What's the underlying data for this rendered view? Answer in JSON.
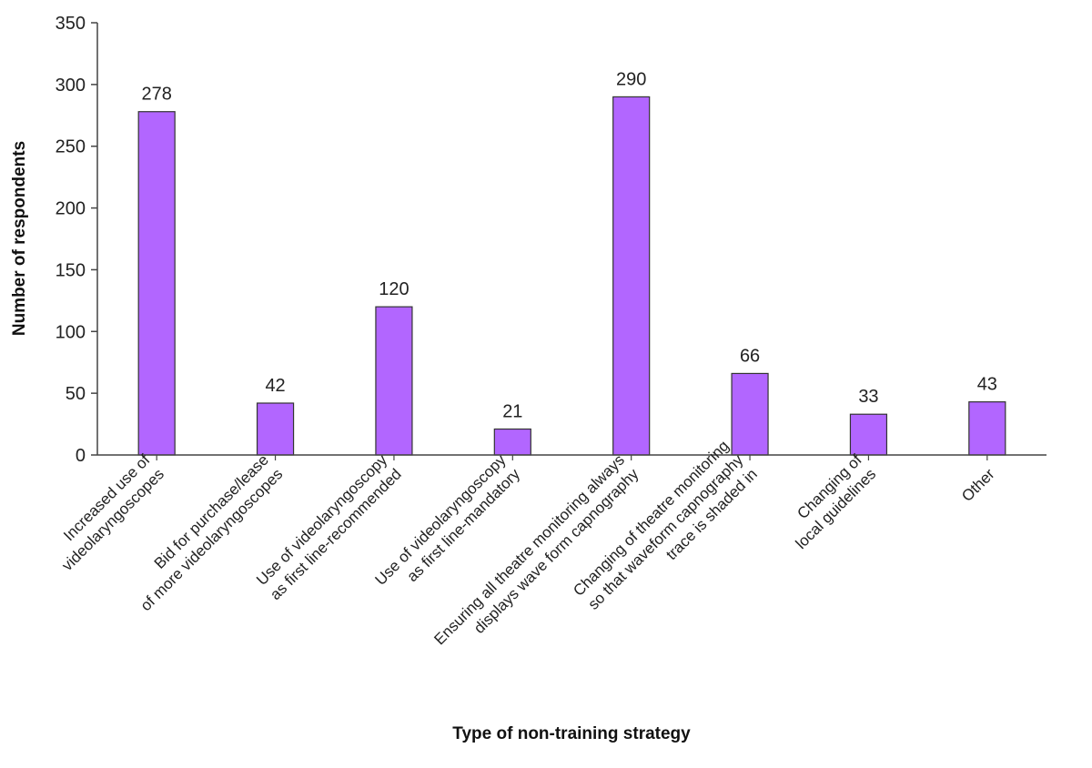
{
  "chart_data": {
    "type": "bar",
    "title": "",
    "xlabel": "Type of non-training strategy",
    "ylabel": "Number of respondents",
    "ylim": [
      0,
      350
    ],
    "yticks": [
      0,
      50,
      100,
      150,
      200,
      250,
      300,
      350
    ],
    "grid": false,
    "categories": [
      [
        "Increased use of",
        "videolaryngoscopes"
      ],
      [
        "Bid for purchase/lease",
        "of more videolaryngoscopes"
      ],
      [
        "Use of videolaryngoscopy",
        "as first line-recommended"
      ],
      [
        "Use of videolaryngoscopy",
        "as first line-mandatory"
      ],
      [
        "Ensuring all theatre monitoring always",
        "displays wave form capnography"
      ],
      [
        "Changing of theatre monitoring",
        "so that waveform capnography",
        "trace is shaded in"
      ],
      [
        "Changing of",
        "local guidelines"
      ],
      [
        "Other"
      ]
    ],
    "values": [
      278,
      42,
      120,
      21,
      290,
      66,
      33,
      43
    ],
    "data_labels": [
      "278",
      "42",
      "120",
      "21",
      "290",
      "66",
      "33",
      "43"
    ],
    "bar_color": "#b266ff",
    "bar_edge_color": "#333333"
  }
}
